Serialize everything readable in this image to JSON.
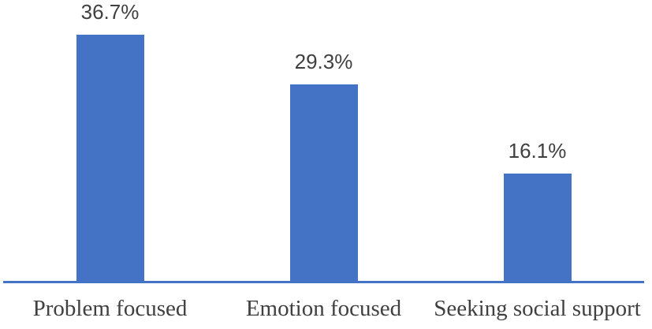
{
  "chart_data": {
    "type": "bar",
    "categories": [
      "Problem focused",
      "Emotion focused",
      "Seeking social support"
    ],
    "values": [
      36.7,
      29.3,
      16.1
    ],
    "value_labels": [
      "36.7%",
      "29.3%",
      "16.1%"
    ],
    "title": "",
    "xlabel": "",
    "ylabel": "",
    "ylim": [
      0,
      42
    ],
    "grid": false,
    "legend": "none",
    "colors": {
      "bar_fill": "#4472C4",
      "axis_line": "#4472C4",
      "label_text": "#404040"
    }
  }
}
